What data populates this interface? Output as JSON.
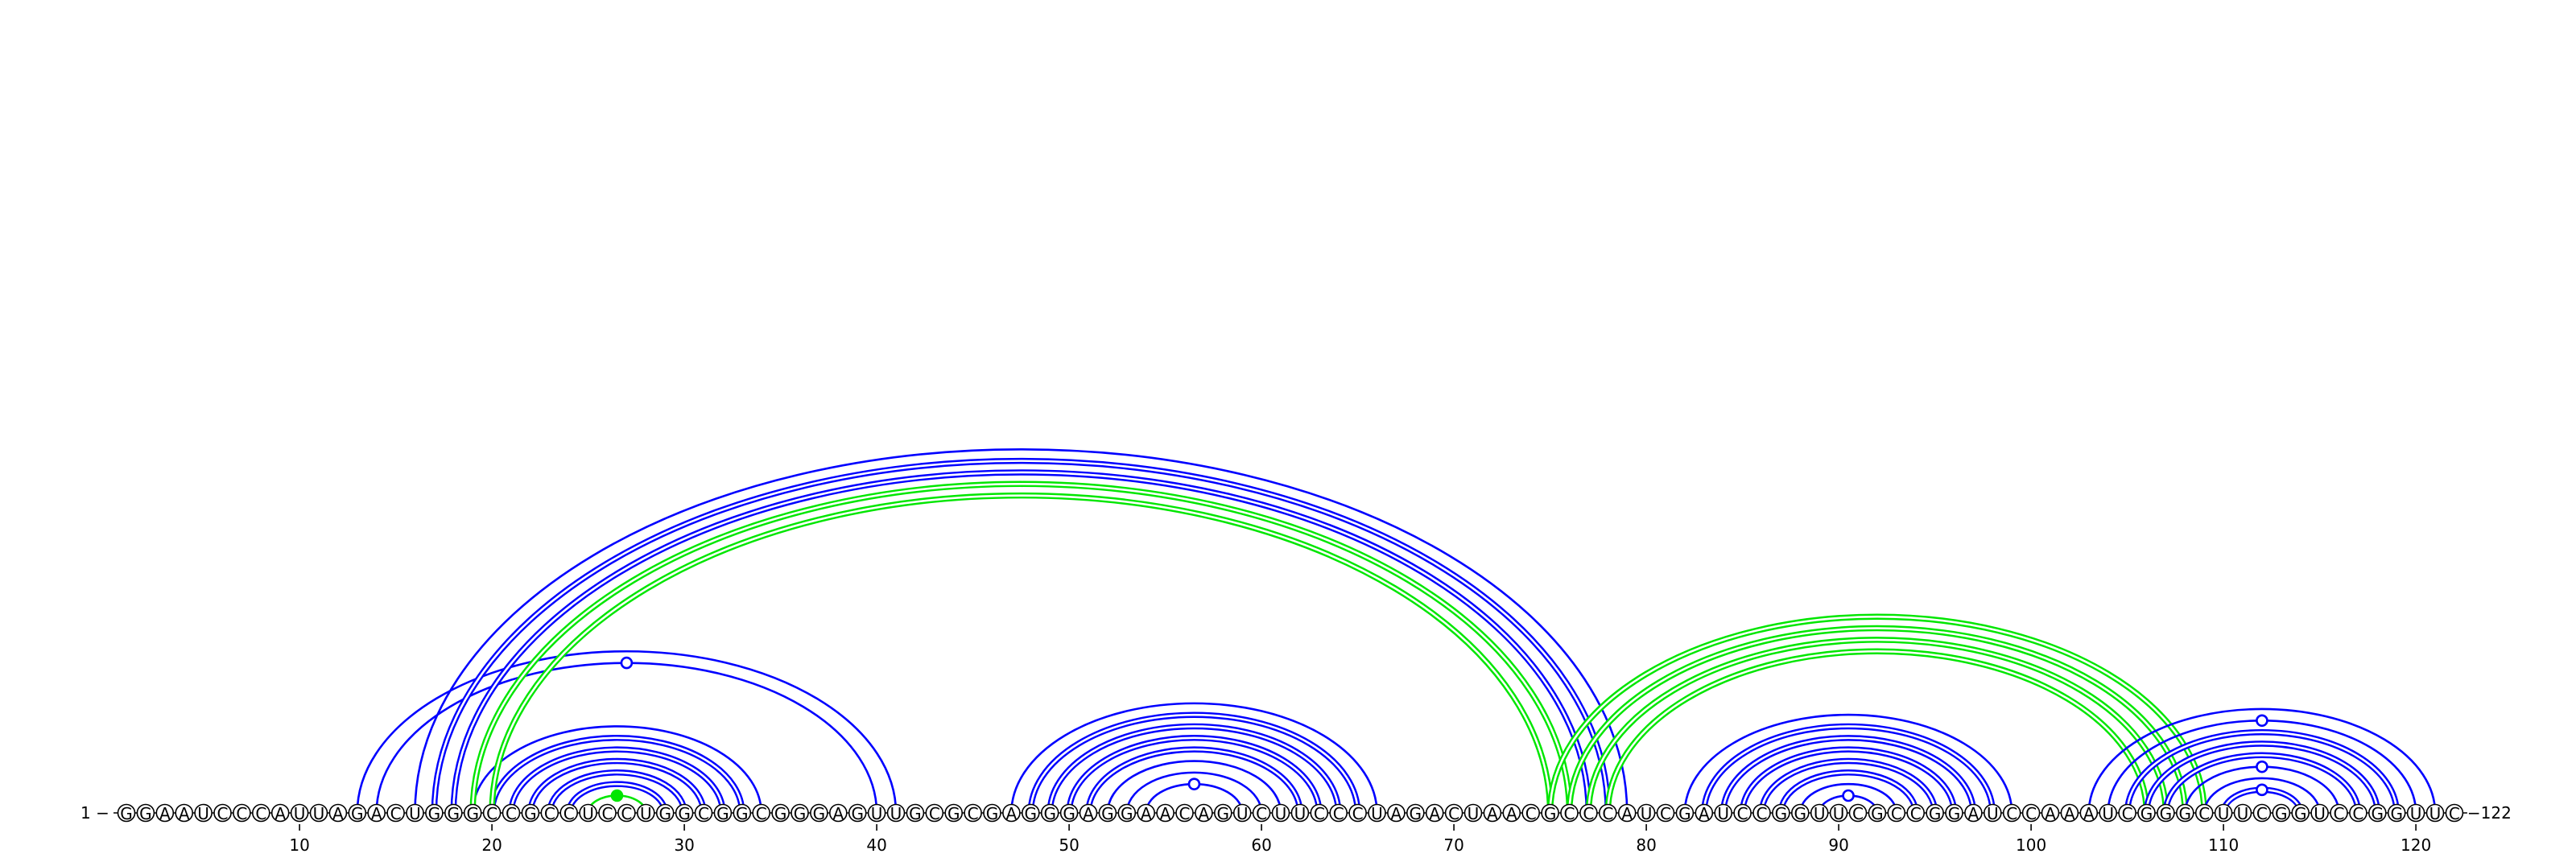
{
  "sequence": "GGAAUCCCAUUAGACUGGGCCGCCUCCUGGCGGCGGGAGUUGCGCGAGGGAGGAACAGUCUUCCCUAGACUAACGCCCAUCGAUCCGGUUCGCCGGAUCCAAAUCGGGCUUCGGUCCGGUUC",
  "labels": {
    "start": "1 −",
    "end": "−122"
  },
  "ticks": [
    10,
    20,
    30,
    40,
    50,
    60,
    70,
    80,
    90,
    100,
    110,
    120
  ],
  "colors": {
    "primary_pair": "#0000ff",
    "alt_pair": "#00e600",
    "backbone": "#000000"
  },
  "arcs": [
    {
      "i": 25,
      "j": 28,
      "color": "green",
      "double": false
    },
    {
      "i": 24,
      "j": 29,
      "color": "blue",
      "double": true
    },
    {
      "i": 23,
      "j": 30,
      "color": "blue",
      "double": true
    },
    {
      "i": 22,
      "j": 31,
      "color": "blue",
      "double": true
    },
    {
      "i": 21,
      "j": 32,
      "color": "blue",
      "double": true
    },
    {
      "i": 20,
      "j": 33,
      "color": "blue",
      "double": true
    },
    {
      "i": 19,
      "j": 34,
      "color": "blue",
      "double": false
    },
    {
      "i": 13,
      "j": 41,
      "color": "blue",
      "double": false
    },
    {
      "i": 14,
      "j": 40,
      "color": "blue",
      "double": false
    },
    {
      "i": 16,
      "j": 79,
      "color": "blue",
      "double": false
    },
    {
      "i": 17,
      "j": 78,
      "color": "blue",
      "double": true
    },
    {
      "i": 18,
      "j": 77,
      "color": "blue",
      "double": true
    },
    {
      "i": 19,
      "j": 76,
      "color": "green",
      "double": true
    },
    {
      "i": 20,
      "j": 75,
      "color": "green",
      "double": true
    },
    {
      "i": 47,
      "j": 66,
      "color": "blue",
      "double": false
    },
    {
      "i": 48,
      "j": 65,
      "color": "blue",
      "double": true
    },
    {
      "i": 49,
      "j": 64,
      "color": "blue",
      "double": true
    },
    {
      "i": 50,
      "j": 63,
      "color": "blue",
      "double": true
    },
    {
      "i": 51,
      "j": 62,
      "color": "blue",
      "double": true
    },
    {
      "i": 52,
      "j": 61,
      "color": "blue",
      "double": false
    },
    {
      "i": 53,
      "j": 60,
      "color": "blue",
      "double": false
    },
    {
      "i": 54,
      "j": 59,
      "color": "blue",
      "double": false
    },
    {
      "i": 75,
      "j": 109,
      "color": "green",
      "double": true
    },
    {
      "i": 76,
      "j": 108,
      "color": "green",
      "double": true
    },
    {
      "i": 77,
      "j": 107,
      "color": "green",
      "double": true
    },
    {
      "i": 78,
      "j": 106,
      "color": "green",
      "double": true
    },
    {
      "i": 82,
      "j": 99,
      "color": "blue",
      "double": false
    },
    {
      "i": 83,
      "j": 98,
      "color": "blue",
      "double": true
    },
    {
      "i": 84,
      "j": 97,
      "color": "blue",
      "double": true
    },
    {
      "i": 85,
      "j": 96,
      "color": "blue",
      "double": true
    },
    {
      "i": 86,
      "j": 95,
      "color": "blue",
      "double": true
    },
    {
      "i": 87,
      "j": 94,
      "color": "blue",
      "double": true
    },
    {
      "i": 88,
      "j": 93,
      "color": "blue",
      "double": false
    },
    {
      "i": 89,
      "j": 92,
      "color": "blue",
      "double": false
    },
    {
      "i": 103,
      "j": 121,
      "color": "blue",
      "double": false
    },
    {
      "i": 104,
      "j": 120,
      "color": "blue",
      "double": false
    },
    {
      "i": 105,
      "j": 119,
      "color": "blue",
      "double": true
    },
    {
      "i": 106,
      "j": 118,
      "color": "blue",
      "double": true
    },
    {
      "i": 107,
      "j": 117,
      "color": "blue",
      "double": true
    },
    {
      "i": 108,
      "j": 116,
      "color": "blue",
      "double": false
    },
    {
      "i": 109,
      "j": 115,
      "color": "blue",
      "double": false
    },
    {
      "i": 110,
      "j": 114,
      "color": "blue",
      "double": true
    }
  ],
  "markers": [
    {
      "i": 14,
      "j": 40,
      "filled": false,
      "color": "blue"
    },
    {
      "i": 25,
      "j": 28,
      "filled": true,
      "color": "green"
    },
    {
      "i": 54,
      "j": 59,
      "filled": false,
      "color": "blue"
    },
    {
      "i": 89,
      "j": 92,
      "filled": false,
      "color": "blue"
    },
    {
      "i": 104,
      "j": 120,
      "filled": false,
      "color": "blue"
    },
    {
      "i": 108,
      "j": 116,
      "filled": false,
      "color": "blue"
    },
    {
      "i": 110,
      "j": 114,
      "filled": false,
      "color": "blue"
    }
  ]
}
